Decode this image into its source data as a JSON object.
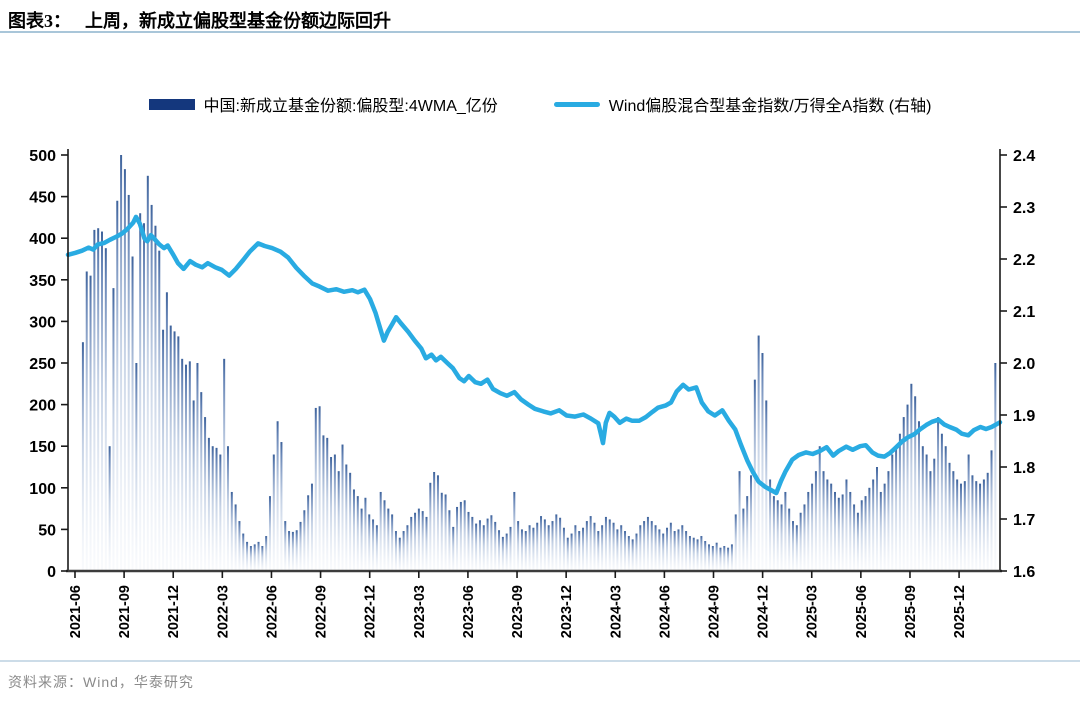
{
  "header": {
    "prefix": "图表3：",
    "title": "上周，新成立偏股型基金份额边际回升"
  },
  "legend": {
    "items": [
      {
        "label": "中国:新成立基金份额:偏股型:4WMA_亿份",
        "swatch": "bar",
        "color": "#14377d"
      },
      {
        "label": "Wind偏股混合型基金指数/万得全A指数 (右轴)",
        "swatch": "line",
        "color": "#29abe2"
      }
    ]
  },
  "footer": {
    "source": "资料来源：Wind，华泰研究"
  },
  "colors": {
    "title_rule": "#a9c6d9",
    "source_rule": "#ccdce8",
    "bar_navy": "#14377d",
    "bar_gradient_top": "#3e639c",
    "bar_gradient_mid": "#9fb4d4",
    "line_blue": "#29abe2",
    "axis": "#1a1a1a"
  },
  "chart_data": {
    "type": "bar",
    "title": "上周，新成立偏股型基金份额边际回升",
    "xlabel": "",
    "ylabel_left": "亿份",
    "ylabel_right": "Wind偏股混合型基金指数/万得全A指数",
    "grid": false,
    "legend_position": "top",
    "left_axis": {
      "min": 0,
      "max": 500,
      "step": 50,
      "tick_labels": [
        "0",
        "50",
        "100",
        "150",
        "200",
        "250",
        "300",
        "350",
        "400",
        "450",
        "500"
      ]
    },
    "right_axis": {
      "min": 1.6,
      "max": 2.4,
      "step": 0.1,
      "tick_labels": [
        "1.6",
        "1.7",
        "1.8",
        "1.9",
        "2.0",
        "2.1",
        "2.2",
        "2.3",
        "2.4"
      ]
    },
    "x_ticks": [
      "2021-06",
      "2021-09",
      "2021-12",
      "2022-03",
      "2022-06",
      "2022-09",
      "2022-12",
      "2023-03",
      "2023-06",
      "2023-09",
      "2023-12",
      "2024-03",
      "2024-06",
      "2024-09",
      "2024-12",
      "2025-03",
      "2025-06",
      "2025-09",
      "2025-12"
    ],
    "x_tick_start_frac": 0.0075,
    "x_tick_step_frac": 0.0527,
    "series": [
      {
        "name": "中国:新成立基金份额:偏股型:4WMA_亿份",
        "type": "bar",
        "axis": "left",
        "frequency": "weekly",
        "values": [
          275,
          360,
          355,
          410,
          412,
          408,
          388,
          150,
          340,
          445,
          500,
          483,
          452,
          378,
          250,
          430,
          418,
          475,
          440,
          415,
          385,
          290,
          335,
          295,
          288,
          282,
          255,
          248,
          252,
          205,
          250,
          215,
          185,
          160,
          150,
          148,
          140,
          255,
          150,
          95,
          80,
          60,
          45,
          35,
          30,
          32,
          35,
          30,
          42,
          90,
          140,
          180,
          155,
          60,
          48,
          47,
          49,
          59,
          73,
          91,
          105,
          196,
          198,
          163,
          160,
          137,
          140,
          120,
          152,
          128,
          118,
          98,
          90,
          75,
          88,
          68,
          62,
          55,
          95,
          85,
          75,
          68,
          48,
          40,
          48,
          55,
          65,
          70,
          75,
          72,
          65,
          106,
          119,
          115,
          94,
          92,
          73,
          53,
          77,
          83,
          85,
          71,
          65,
          57,
          61,
          55,
          63,
          67,
          59,
          49,
          41,
          45,
          53,
          95,
          60,
          50,
          48,
          55,
          52,
          58,
          66,
          62,
          55,
          60,
          68,
          64,
          52,
          40,
          45,
          55,
          48,
          52,
          60,
          66,
          58,
          48,
          55,
          65,
          62,
          58,
          50,
          55,
          48,
          42,
          38,
          45,
          55,
          60,
          65,
          60,
          55,
          50,
          45,
          52,
          58,
          48,
          50,
          55,
          48,
          42,
          40,
          38,
          42,
          36,
          32,
          30,
          34,
          28,
          30,
          28,
          32,
          68,
          120,
          75,
          90,
          115,
          230,
          283,
          262,
          205,
          110,
          90,
          85,
          80,
          95,
          75,
          60,
          55,
          70,
          80,
          95,
          105,
          120,
          150,
          120,
          110,
          105,
          95,
          88,
          92,
          110,
          95,
          80,
          70,
          85,
          90,
          100,
          110,
          125,
          95,
          105,
          120,
          140,
          150,
          165,
          185,
          200,
          225,
          210,
          180,
          150,
          140,
          120,
          135,
          185,
          165,
          150,
          130,
          120,
          110,
          105,
          108,
          140,
          115,
          108,
          105,
          110,
          118,
          145,
          250
        ]
      },
      {
        "name": "Wind偏股混合型基金指数/万得全A指数 (右轴)",
        "type": "line",
        "axis": "right",
        "points": [
          [
            0.0,
            2.208
          ],
          [
            0.008,
            2.212
          ],
          [
            0.015,
            2.216
          ],
          [
            0.022,
            2.222
          ],
          [
            0.027,
            2.218
          ],
          [
            0.032,
            2.228
          ],
          [
            0.039,
            2.231
          ],
          [
            0.045,
            2.237
          ],
          [
            0.052,
            2.243
          ],
          [
            0.058,
            2.249
          ],
          [
            0.064,
            2.258
          ],
          [
            0.07,
            2.27
          ],
          [
            0.073,
            2.281
          ],
          [
            0.077,
            2.268
          ],
          [
            0.082,
            2.24
          ],
          [
            0.085,
            2.234
          ],
          [
            0.089,
            2.246
          ],
          [
            0.093,
            2.238
          ],
          [
            0.098,
            2.228
          ],
          [
            0.103,
            2.221
          ],
          [
            0.107,
            2.226
          ],
          [
            0.113,
            2.208
          ],
          [
            0.118,
            2.192
          ],
          [
            0.124,
            2.181
          ],
          [
            0.131,
            2.196
          ],
          [
            0.137,
            2.189
          ],
          [
            0.144,
            2.184
          ],
          [
            0.15,
            2.192
          ],
          [
            0.158,
            2.184
          ],
          [
            0.165,
            2.179
          ],
          [
            0.173,
            2.168
          ],
          [
            0.18,
            2.181
          ],
          [
            0.188,
            2.198
          ],
          [
            0.195,
            2.214
          ],
          [
            0.204,
            2.23
          ],
          [
            0.211,
            2.225
          ],
          [
            0.219,
            2.221
          ],
          [
            0.228,
            2.214
          ],
          [
            0.236,
            2.203
          ],
          [
            0.245,
            2.183
          ],
          [
            0.253,
            2.168
          ],
          [
            0.262,
            2.153
          ],
          [
            0.27,
            2.147
          ],
          [
            0.279,
            2.139
          ],
          [
            0.288,
            2.142
          ],
          [
            0.296,
            2.137
          ],
          [
            0.305,
            2.14
          ],
          [
            0.311,
            2.136
          ],
          [
            0.318,
            2.141
          ],
          [
            0.324,
            2.123
          ],
          [
            0.33,
            2.096
          ],
          [
            0.336,
            2.06
          ],
          [
            0.339,
            2.043
          ],
          [
            0.343,
            2.06
          ],
          [
            0.348,
            2.075
          ],
          [
            0.352,
            2.088
          ],
          [
            0.357,
            2.077
          ],
          [
            0.365,
            2.06
          ],
          [
            0.372,
            2.043
          ],
          [
            0.379,
            2.028
          ],
          [
            0.384,
            2.009
          ],
          [
            0.39,
            2.016
          ],
          [
            0.395,
            2.005
          ],
          [
            0.4,
            2.012
          ],
          [
            0.407,
            2.0
          ],
          [
            0.413,
            1.99
          ],
          [
            0.42,
            1.971
          ],
          [
            0.425,
            1.965
          ],
          [
            0.43,
            1.975
          ],
          [
            0.437,
            1.963
          ],
          [
            0.443,
            1.96
          ],
          [
            0.45,
            1.968
          ],
          [
            0.456,
            1.95
          ],
          [
            0.464,
            1.942
          ],
          [
            0.471,
            1.937
          ],
          [
            0.479,
            1.944
          ],
          [
            0.486,
            1.93
          ],
          [
            0.494,
            1.92
          ],
          [
            0.501,
            1.912
          ],
          [
            0.51,
            1.907
          ],
          [
            0.518,
            1.903
          ],
          [
            0.527,
            1.909
          ],
          [
            0.535,
            1.899
          ],
          [
            0.544,
            1.897
          ],
          [
            0.553,
            1.901
          ],
          [
            0.561,
            1.893
          ],
          [
            0.569,
            1.884
          ],
          [
            0.572,
            1.862
          ],
          [
            0.574,
            1.846
          ],
          [
            0.577,
            1.885
          ],
          [
            0.581,
            1.904
          ],
          [
            0.586,
            1.897
          ],
          [
            0.592,
            1.885
          ],
          [
            0.599,
            1.893
          ],
          [
            0.605,
            1.889
          ],
          [
            0.613,
            1.889
          ],
          [
            0.62,
            1.896
          ],
          [
            0.627,
            1.906
          ],
          [
            0.633,
            1.914
          ],
          [
            0.641,
            1.918
          ],
          [
            0.647,
            1.924
          ],
          [
            0.653,
            1.945
          ],
          [
            0.66,
            1.958
          ],
          [
            0.666,
            1.949
          ],
          [
            0.674,
            1.953
          ],
          [
            0.68,
            1.924
          ],
          [
            0.687,
            1.907
          ],
          [
            0.694,
            1.899
          ],
          [
            0.702,
            1.909
          ],
          [
            0.709,
            1.889
          ],
          [
            0.716,
            1.872
          ],
          [
            0.722,
            1.843
          ],
          [
            0.729,
            1.812
          ],
          [
            0.735,
            1.79
          ],
          [
            0.741,
            1.772
          ],
          [
            0.748,
            1.762
          ],
          [
            0.754,
            1.756
          ],
          [
            0.76,
            1.75
          ],
          [
            0.765,
            1.773
          ],
          [
            0.77,
            1.792
          ],
          [
            0.777,
            1.814
          ],
          [
            0.784,
            1.823
          ],
          [
            0.792,
            1.828
          ],
          [
            0.799,
            1.825
          ],
          [
            0.807,
            1.831
          ],
          [
            0.814,
            1.838
          ],
          [
            0.821,
            1.822
          ],
          [
            0.827,
            1.831
          ],
          [
            0.835,
            1.839
          ],
          [
            0.842,
            1.833
          ],
          [
            0.85,
            1.84
          ],
          [
            0.856,
            1.842
          ],
          [
            0.863,
            1.828
          ],
          [
            0.869,
            1.822
          ],
          [
            0.876,
            1.82
          ],
          [
            0.882,
            1.827
          ],
          [
            0.888,
            1.837
          ],
          [
            0.895,
            1.849
          ],
          [
            0.901,
            1.857
          ],
          [
            0.908,
            1.863
          ],
          [
            0.914,
            1.872
          ],
          [
            0.921,
            1.881
          ],
          [
            0.927,
            1.887
          ],
          [
            0.934,
            1.891
          ],
          [
            0.94,
            1.882
          ],
          [
            0.946,
            1.877
          ],
          [
            0.953,
            1.872
          ],
          [
            0.959,
            1.864
          ],
          [
            0.966,
            1.861
          ],
          [
            0.972,
            1.871
          ],
          [
            0.979,
            1.877
          ],
          [
            0.985,
            1.873
          ],
          [
            0.991,
            1.877
          ],
          [
            1.0,
            1.886
          ]
        ]
      }
    ]
  }
}
